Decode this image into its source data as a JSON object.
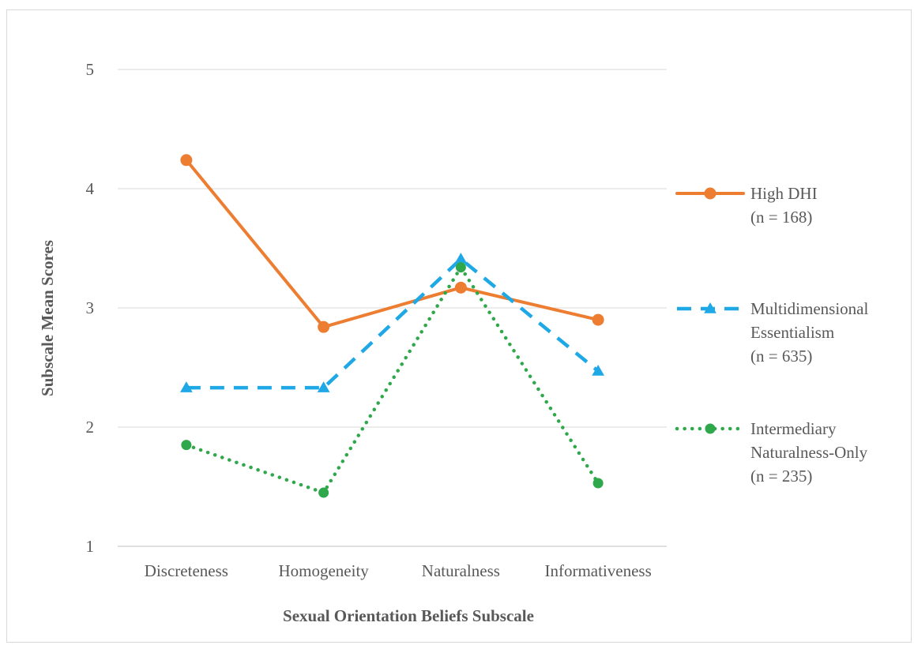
{
  "chart_data": {
    "type": "line",
    "categories": [
      "Discreteness",
      "Homogeneity",
      "Naturalness",
      "Informativeness"
    ],
    "series": [
      {
        "name": "High DHI",
        "legend_lines": [
          "High DHI",
          "(n = 168)"
        ],
        "values": [
          4.24,
          2.84,
          3.17,
          2.9
        ],
        "color": "#ED7D31",
        "line_style": "solid",
        "marker": "circle"
      },
      {
        "name": "Multidimensional Essentialism",
        "legend_lines": [
          "Multidimensional",
          "Essentialism",
          "(n = 635)"
        ],
        "values": [
          2.33,
          2.33,
          3.41,
          2.47
        ],
        "color": "#1FA8E6",
        "line_style": "dashed",
        "marker": "triangle"
      },
      {
        "name": "Intermediary Naturalness-Only",
        "legend_lines": [
          "Intermediary",
          "Naturalness-Only",
          "(n = 235)"
        ],
        "values": [
          1.85,
          1.45,
          3.34,
          1.53
        ],
        "color": "#2EA84A",
        "line_style": "dotted",
        "marker": "circle"
      }
    ],
    "xlabel": "Sexual Orientation Beliefs Subscale",
    "ylabel": "Subscale Mean Scores",
    "ylim": [
      1,
      5
    ],
    "yticks": [
      "1",
      "2",
      "3",
      "4",
      "5"
    ],
    "grid": true,
    "legend_position": "right"
  }
}
